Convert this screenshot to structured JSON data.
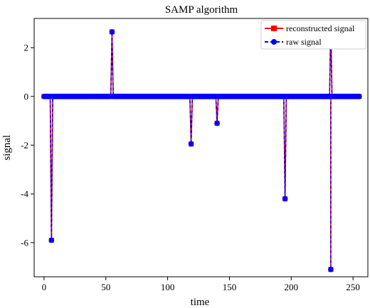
{
  "chart_data": {
    "type": "line",
    "title": "SAMP algorithm",
    "xlabel": "time",
    "ylabel": "signal",
    "xlim": [
      -8,
      262
    ],
    "ylim": [
      -7.4,
      3.2
    ],
    "xticks": [
      0,
      50,
      100,
      150,
      200,
      250
    ],
    "yticks": [
      2,
      0,
      -2,
      -4,
      -6
    ],
    "ytick_labels": [
      "2",
      "0",
      "-2",
      "-4",
      "-6"
    ],
    "grid": false,
    "legend_position": "top-right",
    "n_points": 256,
    "spikes": [
      {
        "x": 6,
        "y": -5.9
      },
      {
        "x": 55,
        "y": 2.65
      },
      {
        "x": 119,
        "y": -1.95
      },
      {
        "x": 140,
        "y": -1.1
      },
      {
        "x": 195,
        "y": -4.2
      },
      {
        "x": 232,
        "y": -7.1
      },
      {
        "x": 232,
        "y": 3.0
      }
    ],
    "series": [
      {
        "name": "reconstructed signal",
        "color": "#ff0000",
        "marker": "square",
        "linestyle": "solid"
      },
      {
        "name": "raw signal",
        "color": "#0000ff",
        "marker": "circle",
        "linestyle": "dashed"
      }
    ]
  }
}
